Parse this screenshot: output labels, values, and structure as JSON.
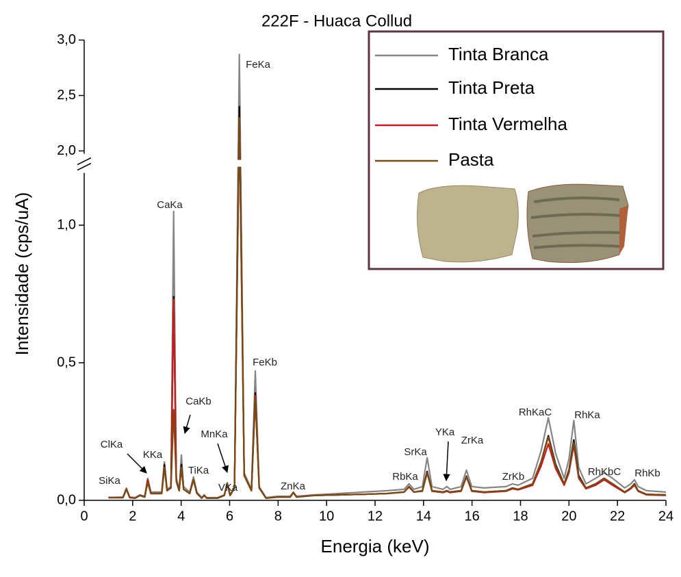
{
  "chart_data": {
    "type": "line",
    "title": "222F - Huaca Collud",
    "xlabel": "Energia (keV)",
    "ylabel": "Intensidade (cps/uA)",
    "x": [
      1.0,
      1.6,
      1.74,
      1.88,
      2.1,
      2.3,
      2.5,
      2.62,
      2.75,
      2.95,
      3.2,
      3.31,
      3.42,
      3.58,
      3.69,
      3.8,
      3.92,
      4.01,
      4.1,
      4.35,
      4.51,
      4.65,
      4.85,
      4.95,
      5.05,
      5.5,
      5.78,
      5.9,
      6.02,
      6.2,
      6.4,
      6.6,
      6.9,
      7.06,
      7.22,
      7.5,
      8.0,
      8.5,
      8.63,
      8.76,
      9.5,
      10.5,
      11.5,
      12.5,
      13.2,
      13.4,
      13.6,
      13.95,
      14.15,
      14.35,
      14.8,
      14.96,
      15.1,
      15.55,
      15.77,
      15.99,
      16.5,
      17.4,
      17.67,
      17.9,
      18.5,
      18.85,
      19.15,
      19.45,
      19.8,
      20.0,
      20.2,
      20.4,
      20.7,
      21.1,
      21.45,
      21.8,
      22.3,
      22.55,
      22.7,
      22.85,
      23.2,
      24.0
    ],
    "series": [
      {
        "name": "Tinta Branca",
        "color": "#858585",
        "values": [
          0.01,
          0.012,
          0.045,
          0.012,
          0.01,
          0.02,
          0.015,
          0.08,
          0.03,
          0.03,
          0.03,
          0.14,
          0.04,
          0.05,
          1.05,
          0.08,
          0.04,
          0.165,
          0.05,
          0.03,
          0.085,
          0.03,
          0.01,
          0.02,
          0.01,
          0.01,
          0.02,
          0.065,
          0.02,
          0.05,
          2.87,
          0.1,
          0.04,
          0.47,
          0.05,
          0.01,
          0.015,
          0.015,
          0.03,
          0.015,
          0.02,
          0.025,
          0.03,
          0.035,
          0.04,
          0.06,
          0.04,
          0.05,
          0.155,
          0.05,
          0.04,
          0.05,
          0.04,
          0.05,
          0.11,
          0.05,
          0.045,
          0.05,
          0.06,
          0.055,
          0.08,
          0.18,
          0.3,
          0.17,
          0.08,
          0.15,
          0.29,
          0.12,
          0.06,
          0.08,
          0.1,
          0.08,
          0.045,
          0.06,
          0.075,
          0.05,
          0.035,
          0.03
        ]
      },
      {
        "name": "Tinta Preta",
        "color": "#000000",
        "values": [
          0.01,
          0.01,
          0.04,
          0.01,
          0.008,
          0.018,
          0.012,
          0.075,
          0.025,
          0.025,
          0.025,
          0.13,
          0.035,
          0.045,
          0.74,
          0.07,
          0.035,
          0.13,
          0.04,
          0.025,
          0.075,
          0.025,
          0.008,
          0.018,
          0.008,
          0.008,
          0.018,
          0.06,
          0.018,
          0.045,
          2.4,
          0.09,
          0.035,
          0.39,
          0.045,
          0.008,
          0.012,
          0.012,
          0.028,
          0.012,
          0.018,
          0.02,
          0.022,
          0.025,
          0.03,
          0.05,
          0.03,
          0.035,
          0.105,
          0.035,
          0.03,
          0.035,
          0.03,
          0.035,
          0.088,
          0.035,
          0.03,
          0.035,
          0.045,
          0.04,
          0.06,
          0.14,
          0.235,
          0.13,
          0.06,
          0.11,
          0.22,
          0.09,
          0.045,
          0.06,
          0.08,
          0.06,
          0.03,
          0.045,
          0.06,
          0.035,
          0.022,
          0.02
        ]
      },
      {
        "name": "Tinta Vermelha",
        "color": "#cc1a1a",
        "values": [
          0.01,
          0.01,
          0.04,
          0.01,
          0.008,
          0.018,
          0.012,
          0.075,
          0.025,
          0.025,
          0.025,
          0.12,
          0.035,
          0.045,
          0.73,
          0.07,
          0.035,
          0.12,
          0.04,
          0.025,
          0.075,
          0.025,
          0.008,
          0.018,
          0.008,
          0.008,
          0.018,
          0.06,
          0.018,
          0.045,
          2.3,
          0.09,
          0.035,
          0.38,
          0.045,
          0.008,
          0.012,
          0.012,
          0.028,
          0.012,
          0.018,
          0.02,
          0.022,
          0.025,
          0.03,
          0.048,
          0.03,
          0.033,
          0.1,
          0.033,
          0.028,
          0.033,
          0.028,
          0.033,
          0.085,
          0.033,
          0.028,
          0.033,
          0.042,
          0.038,
          0.055,
          0.125,
          0.205,
          0.115,
          0.055,
          0.1,
          0.2,
          0.08,
          0.042,
          0.055,
          0.075,
          0.055,
          0.028,
          0.042,
          0.055,
          0.033,
          0.02,
          0.018
        ]
      },
      {
        "name": "Pasta",
        "color": "#7a4a12",
        "values": [
          0.01,
          0.01,
          0.04,
          0.01,
          0.008,
          0.018,
          0.012,
          0.065,
          0.025,
          0.025,
          0.025,
          0.12,
          0.035,
          0.045,
          0.33,
          0.07,
          0.035,
          0.12,
          0.04,
          0.025,
          0.075,
          0.025,
          0.008,
          0.018,
          0.008,
          0.008,
          0.018,
          0.06,
          0.018,
          0.045,
          2.3,
          0.09,
          0.035,
          0.37,
          0.045,
          0.008,
          0.012,
          0.012,
          0.028,
          0.012,
          0.018,
          0.02,
          0.022,
          0.025,
          0.03,
          0.05,
          0.03,
          0.035,
          0.1,
          0.035,
          0.03,
          0.035,
          0.03,
          0.035,
          0.085,
          0.035,
          0.03,
          0.035,
          0.045,
          0.04,
          0.06,
          0.14,
          0.23,
          0.125,
          0.06,
          0.105,
          0.21,
          0.085,
          0.045,
          0.06,
          0.08,
          0.06,
          0.03,
          0.045,
          0.058,
          0.035,
          0.022,
          0.02
        ]
      }
    ],
    "xlim": [
      0,
      24
    ],
    "xticks": [
      0,
      2,
      4,
      6,
      8,
      10,
      12,
      14,
      16,
      18,
      20,
      22,
      24
    ],
    "ylim": [
      0,
      3.0
    ],
    "ybreak": [
      1.2,
      1.95
    ],
    "yticks": [
      {
        "value": 0,
        "label": "0,0"
      },
      {
        "value": 0.5,
        "label": "0,5"
      },
      {
        "value": 1.0,
        "label": "1,0"
      },
      {
        "value": 2.0,
        "label": "2,0"
      },
      {
        "value": 2.5,
        "label": "2,5"
      },
      {
        "value": 3.0,
        "label": "3,0"
      }
    ],
    "annotations": [
      "SiKa",
      "ClKa",
      "KKa",
      "CaKa",
      "CaKb",
      "TiKa",
      "VKa",
      "MnKa",
      "FeKa",
      "FeKb",
      "ZnKa",
      "RbKa",
      "SrKa",
      "YKa",
      "ZrKa",
      "ZrKb",
      "RhKaC",
      "RhKa",
      "RhKbC",
      "RhKb"
    ],
    "legend": "upper right"
  }
}
